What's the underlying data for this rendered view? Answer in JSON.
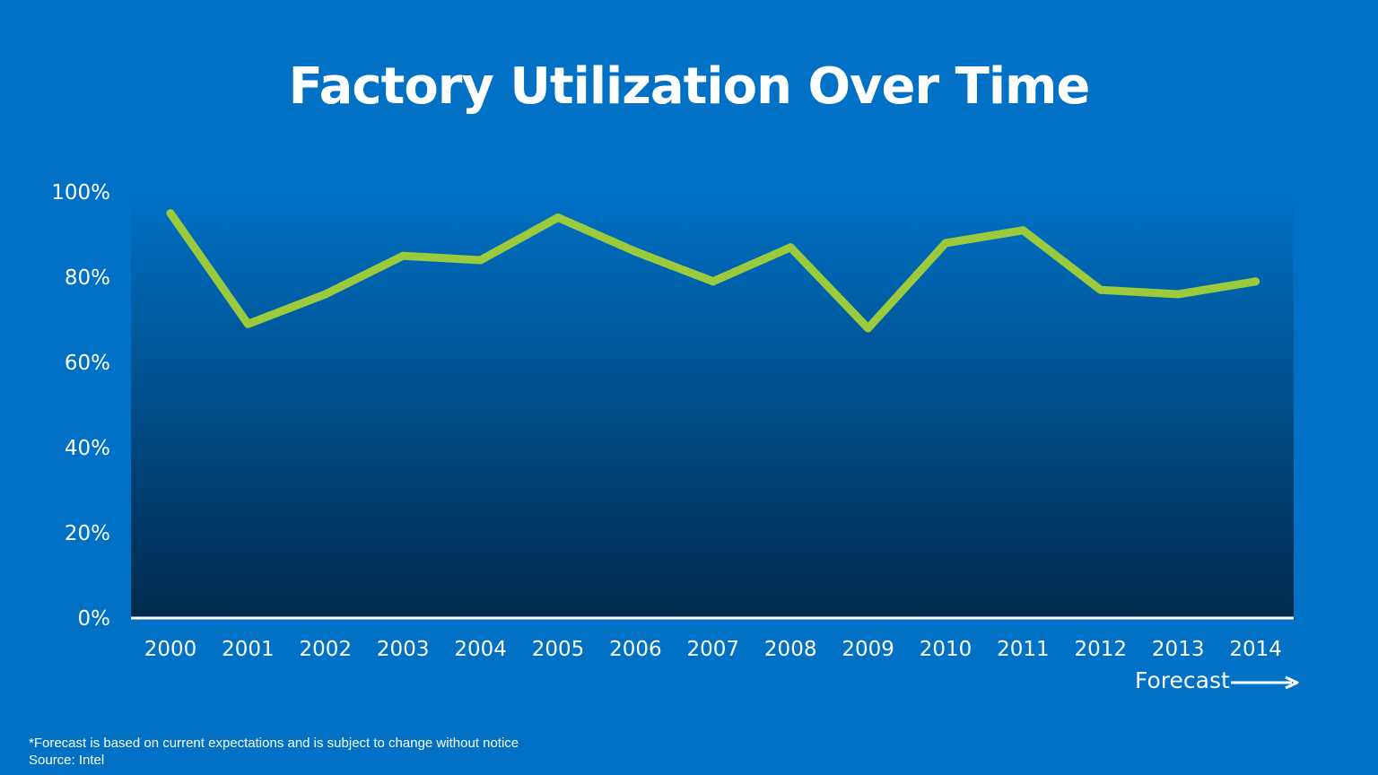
{
  "slide": {
    "title": "Factory Utilization Over Time",
    "footnote": "*Forecast  is based on current expectations and is subject to change without notice",
    "source": "Source: Intel",
    "background_color": "#0071c5"
  },
  "chart_data": {
    "type": "area",
    "title": "Factory Utilization Over Time",
    "xlabel": "",
    "ylabel": "",
    "categories": [
      "2000",
      "2001",
      "2002",
      "2003",
      "2004",
      "2005",
      "2006",
      "2007",
      "2008",
      "2009",
      "2010",
      "2011",
      "2012",
      "2013",
      "2014"
    ],
    "series": [
      {
        "values": [
          95,
          69,
          76,
          85,
          84,
          94,
          86,
          79,
          87,
          68,
          88,
          91,
          77,
          76,
          79
        ],
        "color": "#9bcb3c"
      }
    ],
    "ylim": [
      0,
      100
    ],
    "yticks": [
      "0%",
      "20%",
      "40%",
      "60%",
      "80%",
      "100%"
    ],
    "ytick_values": [
      0,
      20,
      40,
      60,
      80,
      100
    ],
    "grid": false,
    "legend": "none",
    "forecast_label": "Forecast",
    "area_gradient": [
      "#0071c5",
      "#002a4e"
    ]
  }
}
